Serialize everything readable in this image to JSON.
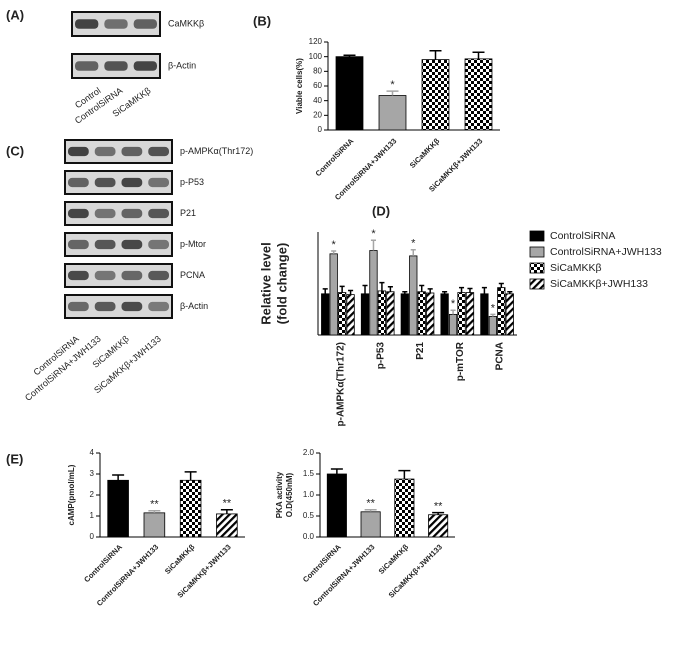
{
  "blots": [
    {
      "panel": "(A)",
      "rows": [
        "CaMKKβ",
        "β-Actin"
      ],
      "lanes": [
        "Control",
        "ControlSiRNA",
        "SiCaMKKβ"
      ]
    },
    {
      "panel": "(C)",
      "rows": [
        "p-AMPKα(Thr172)",
        "p-P53",
        "P21",
        "p-Mtor",
        "PCNA",
        "β-Actin"
      ],
      "lanes": [
        "ControlSiRNA",
        "ControlSiRNA+JWH133",
        "SiCaMKKβ",
        "SiCaMKKβ+JWH133"
      ]
    }
  ],
  "chart_data": [
    {
      "type": "bar",
      "panel": "(B)",
      "ylabel": [
        "Viable cells(%)"
      ],
      "categories": [
        "ControlSiRNA",
        "ControlSiRNA+JWH133",
        "SiCaMKKβ",
        "SiCaMKKβ+JWH133"
      ],
      "values": [
        100,
        47,
        96,
        97
      ],
      "errors": [
        2,
        6,
        12,
        9
      ],
      "significance": [
        null,
        "*",
        null,
        null
      ],
      "colors": [
        "#000000",
        "#a6a6a6",
        "#000000",
        "#000000"
      ],
      "patterns": [
        "solid",
        "solid",
        "checker",
        "checker"
      ],
      "ylim": [
        0,
        120
      ],
      "yticks": [
        0,
        20,
        40,
        60,
        80,
        100,
        120
      ]
    },
    {
      "type": "bar",
      "panel": "(D)",
      "ylabel": [
        "Relative level",
        "(fold change)"
      ],
      "categories": [
        "p-AMPKα(Thr172)",
        "p-P53",
        "P21",
        "p-mTOR",
        "PCNA"
      ],
      "series": [
        {
          "name": "ControlSiRNA",
          "color": "#000000",
          "pattern": "solid",
          "values": [
            1.0,
            1.0,
            1.0,
            1.0,
            1.0
          ],
          "errors": [
            0.12,
            0.2,
            0.05,
            0.05,
            0.15
          ]
        },
        {
          "name": "ControlSiRNA+JWH133",
          "color": "#a6a6a6",
          "pattern": "solid",
          "values": [
            1.97,
            2.05,
            1.92,
            0.5,
            0.45
          ],
          "errors": [
            0.07,
            0.25,
            0.15,
            0.1,
            0.05
          ],
          "significance": [
            "*",
            "*",
            "*",
            "*",
            "*"
          ]
        },
        {
          "name": "SiCaMKKβ",
          "color": "#000000",
          "pattern": "checker",
          "values": [
            1.03,
            1.07,
            1.05,
            1.03,
            1.15
          ],
          "errors": [
            0.15,
            0.2,
            0.15,
            0.12,
            0.1
          ]
        },
        {
          "name": "SiCaMKKβ+JWH133",
          "color": "#000000",
          "pattern": "hatch",
          "values": [
            0.98,
            1.05,
            1.02,
            1.03,
            1.0
          ],
          "errors": [
            0.1,
            0.12,
            0.1,
            0.1,
            0.05
          ]
        }
      ],
      "ylim": [
        0,
        2.5
      ],
      "legend": "right"
    },
    {
      "type": "bar",
      "panel": "(E)",
      "ylabel": [
        "cAMP(pmol/mL)"
      ],
      "categories": [
        "ControlSiRNA",
        "ControlSiRNA+JWH133",
        "SiCaMKKβ",
        "SiCaMKKβ+JWH133"
      ],
      "values": [
        2.7,
        1.15,
        2.7,
        1.1
      ],
      "errors": [
        0.25,
        0.1,
        0.4,
        0.2
      ],
      "significance": [
        null,
        "**",
        null,
        "**"
      ],
      "colors": [
        "#000000",
        "#a6a6a6",
        "#000000",
        "#000000"
      ],
      "patterns": [
        "solid",
        "solid",
        "checker",
        "hatch"
      ],
      "ylim": [
        0,
        4
      ],
      "yticks": [
        0,
        1,
        2,
        3,
        4
      ]
    },
    {
      "type": "bar",
      "ylabel": [
        "PKA activity",
        "O.D(450nM)"
      ],
      "categories": [
        "ControlSiRNA",
        "ControlSiRNA+JWH133",
        "SiCaMKKβ",
        "SiCaMKKβ+JWH133"
      ],
      "values": [
        1.5,
        0.6,
        1.38,
        0.53
      ],
      "errors": [
        0.12,
        0.05,
        0.2,
        0.05
      ],
      "significance": [
        null,
        "**",
        null,
        "**"
      ],
      "colors": [
        "#000000",
        "#a6a6a6",
        "#000000",
        "#000000"
      ],
      "patterns": [
        "solid",
        "solid",
        "checker",
        "hatch"
      ],
      "ylim": [
        0,
        2
      ],
      "yticks": [
        {
          "value": 0,
          "label": "0.0"
        },
        0.5,
        {
          "value": 1,
          "label": "1.0"
        },
        1.5,
        {
          "value": 2,
          "label": "2.0"
        }
      ]
    }
  ]
}
